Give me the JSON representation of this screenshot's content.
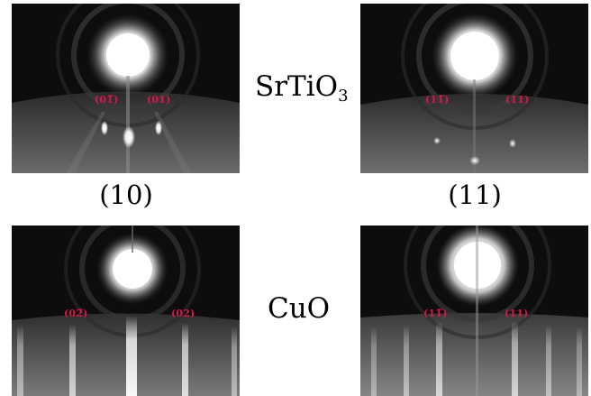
{
  "materials": {
    "top": {
      "base": "SrTiO",
      "subscript": "3"
    },
    "bottom": {
      "base": "CuO"
    }
  },
  "columns": {
    "left_label": "(10)",
    "right_label": "(11)"
  },
  "panels": {
    "sto_10": {
      "labels": [
        "(01̅)",
        "(01)"
      ]
    },
    "sto_11": {
      "labels": [
        "(11̅)",
        "(11)"
      ]
    },
    "cuo_10": {
      "labels": [
        "(02̅)",
        "(02)"
      ]
    },
    "cuo_11": {
      "labels": [
        "(11̅)",
        "(11)"
      ]
    }
  },
  "colors": {
    "label": "#d8174a",
    "background": "#0b0b0b"
  }
}
